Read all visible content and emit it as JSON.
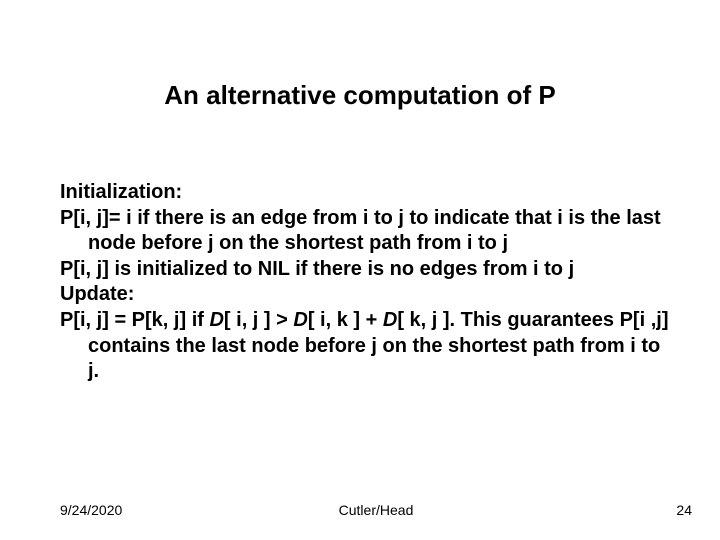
{
  "slide": {
    "title": "An alternative computation of P",
    "body": {
      "line1": "Initialization:",
      "line2": "P[i, j]= i if there is an edge from i to j to indicate that i is the last node before j on the shortest path from i to j",
      "line3": "P[i, j] is initialized to NIL if there is no edges from i to j",
      "line4": "Update:",
      "line5a": "P[i, j] = P[k, j] if ",
      "line5b": "D",
      "line5c": "[ i, j ] > ",
      "line5d": "D",
      "line5e": "[ i, k ] + ",
      "line5f": "D",
      "line5g": "[ k, j ]. This guarantees P[i ,j] contains the last node before j on the shortest path from i to j."
    },
    "footer": {
      "date": "9/24/2020",
      "center": "Cutler/Head",
      "pagenum": "24"
    },
    "colors": {
      "background": "#ffffff",
      "text": "#000000"
    },
    "typography": {
      "title_fontsize": 26,
      "body_fontsize": 20,
      "footer_fontsize": 14,
      "font_family": "Arial"
    }
  }
}
